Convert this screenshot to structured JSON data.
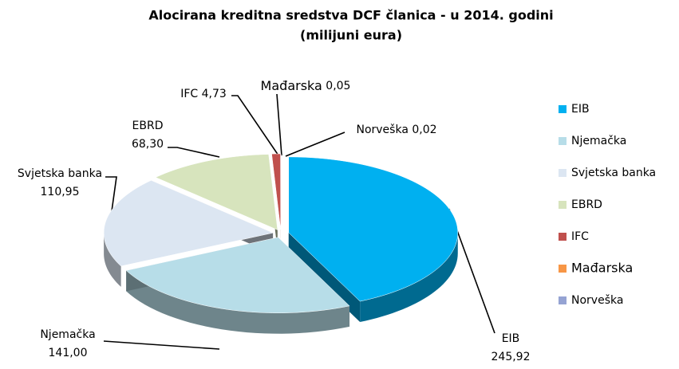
{
  "chart_data": {
    "type": "pie3d",
    "title": "Alocirana kreditna sredstva DCF članica - u 2014. godini",
    "subtitle": "(milijuni eura)",
    "categories": [
      "EIB",
      "Njemačka",
      "Svjetska banka",
      "EBRD",
      "IFC",
      "Mađarska",
      "Norveška"
    ],
    "values": [
      245.92,
      141.0,
      110.95,
      68.3,
      4.73,
      0.05,
      0.02
    ],
    "value_labels": [
      "245,92",
      "141,00",
      "110,95",
      "68,30",
      "4,73",
      "0,05",
      "0,02"
    ],
    "colors": [
      "#00b0f0",
      "#b7dde8",
      "#dce6f2",
      "#d7e4bd",
      "#c0504d",
      "#f79646",
      "#95a3d3"
    ],
    "legend": "right"
  }
}
